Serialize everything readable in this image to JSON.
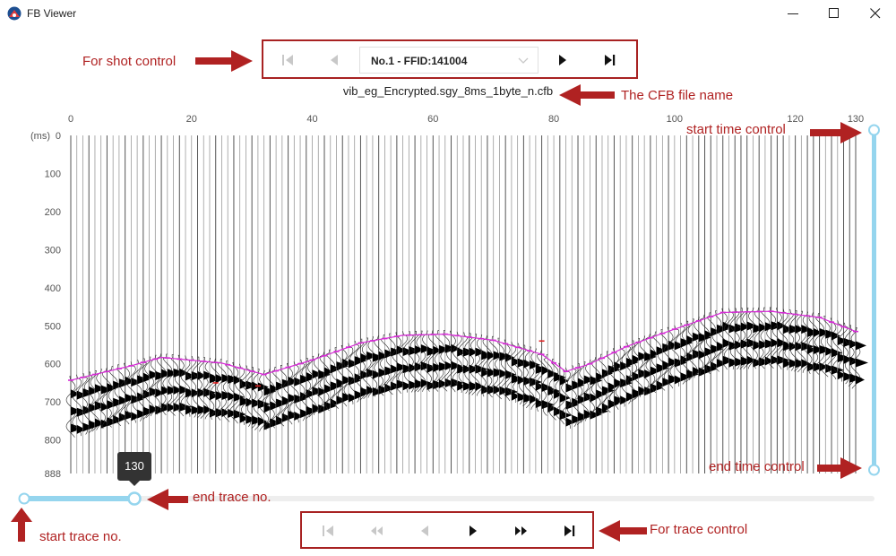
{
  "window": {
    "title": "FB Viewer"
  },
  "shot_control": {
    "selected": "No.1 - FFID:141004"
  },
  "file_name": "vib_eg_Encrypted.sgy_8ms_1byte_n.cfb",
  "plot": {
    "time_unit": "(ms)",
    "x_ticks": [
      "0",
      "20",
      "40",
      "60",
      "80",
      "100",
      "120",
      "130"
    ],
    "y_ticks": [
      "0",
      "100",
      "200",
      "300",
      "400",
      "500",
      "600",
      "700",
      "800",
      "888"
    ]
  },
  "annotations": {
    "shot_control": "For shot control",
    "file_name": "The CFB file name",
    "start_time": "start time control",
    "end_time": "end time control",
    "end_trace": "end trace no.",
    "start_trace": "start trace no.",
    "trace_control": "For trace control"
  },
  "trace_slider": {
    "start": 0,
    "end": 130,
    "max": 130,
    "tooltip": "130"
  },
  "time_slider": {
    "start": 0,
    "end": 888
  },
  "colors": {
    "accent": "#95d5ee",
    "annotation": "#b02222",
    "pick": "#d62bd6"
  }
}
